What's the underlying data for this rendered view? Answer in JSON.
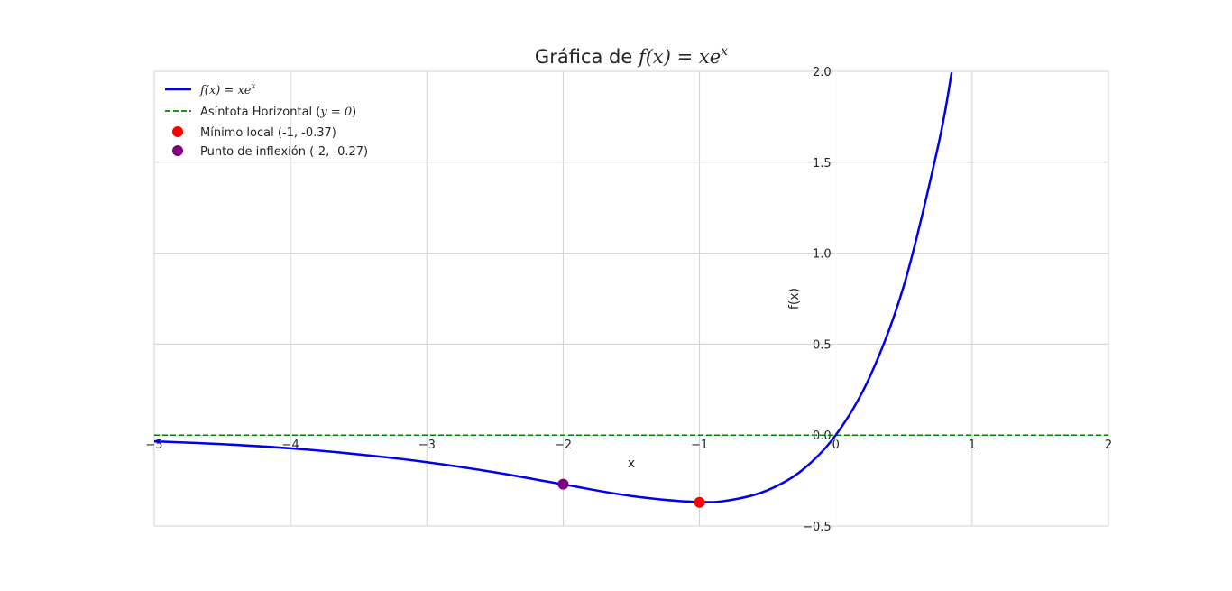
{
  "chart_data": {
    "type": "line",
    "title": {
      "prefix": "Gráfica de ",
      "math": "f(x) = xe",
      "sup": "x"
    },
    "xlabel": "x",
    "ylabel": "f(x)",
    "xlim": [
      -5,
      2
    ],
    "ylim": [
      -0.5,
      2.0
    ],
    "grid": true,
    "legend_position": "top-left",
    "x_ticks": [
      -5,
      -4,
      -3,
      -2,
      -1,
      0,
      1,
      2
    ],
    "x_tick_labels": [
      "−5",
      "−4",
      "−3",
      "−2",
      "−1",
      "0",
      "1",
      "2"
    ],
    "y_ticks": [
      -0.5,
      0.0,
      0.5,
      1.0,
      1.5,
      2.0
    ],
    "y_tick_labels": [
      "−0.5",
      "0.0",
      "0.5",
      "1.0",
      "1.5",
      "2.0"
    ],
    "series": [
      {
        "name": "f(x) = xe",
        "name_sup": "x",
        "style": "solid",
        "color": "#0000ee",
        "x": [
          -5,
          -4.5,
          -4,
          -3.5,
          -3,
          -2.5,
          -2,
          -1.5,
          -1,
          -0.75,
          -0.5,
          -0.25,
          0,
          0.25,
          0.5,
          0.75,
          0.85
        ],
        "y": [
          -0.034,
          -0.05,
          -0.073,
          -0.106,
          -0.149,
          -0.205,
          -0.271,
          -0.335,
          -0.368,
          -0.354,
          -0.303,
          -0.195,
          0,
          0.321,
          0.824,
          1.588,
          1.994
        ]
      },
      {
        "name_prefix": "Asíntota Horizontal (",
        "name_math": "y = 0",
        "name_suffix": ")",
        "style": "dashed",
        "color": "#008000",
        "x": [
          -5,
          2
        ],
        "y": [
          0,
          0
        ]
      }
    ],
    "points": [
      {
        "name": "Mínimo local (-1, -0.37)",
        "x": -1,
        "y": -0.37,
        "color": "#ff0000"
      },
      {
        "name": "Punto de inflexión (-2, -0.27)",
        "x": -2,
        "y": -0.27,
        "color": "#800080"
      }
    ]
  }
}
